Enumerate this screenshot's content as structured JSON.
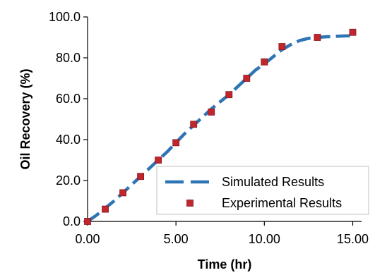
{
  "chart_data": {
    "type": "scatter",
    "title": "",
    "xlabel": "Time (hr)",
    "ylabel": "Oil Recovery  (%)",
    "xlim": [
      0,
      15.5
    ],
    "ylim": [
      0,
      100
    ],
    "x_ticks": [
      0,
      5,
      10,
      15
    ],
    "x_tick_labels": [
      "0.00",
      "5.00",
      "10.00",
      "15.00"
    ],
    "y_ticks": [
      0,
      20,
      40,
      60,
      80,
      100
    ],
    "y_tick_labels": [
      "0.0",
      "20.0",
      "40.0",
      "60.0",
      "80.0",
      "100.0"
    ],
    "grid": false,
    "legend_position": "bottom-right",
    "series": [
      {
        "name": "Simulated Results",
        "kind": "line",
        "style": "dashed",
        "color": "#2E75B6",
        "x": [
          0,
          0.5,
          1,
          1.5,
          2,
          2.5,
          3,
          3.5,
          4,
          4.5,
          5,
          5.5,
          6,
          6.5,
          7,
          7.5,
          8,
          8.5,
          9,
          9.5,
          10,
          10.5,
          11,
          11.5,
          12,
          12.5,
          13,
          13.5,
          14,
          14.5,
          15
        ],
        "y": [
          0,
          3,
          6.5,
          10,
          14,
          18,
          22,
          26,
          30,
          34,
          38.5,
          43,
          47,
          51,
          55,
          58.5,
          62,
          66,
          70,
          74,
          77,
          80.5,
          84,
          86.5,
          88.5,
          89.5,
          90,
          90.3,
          90.5,
          90.7,
          90.8
        ]
      },
      {
        "name": "Experimental Results",
        "kind": "marker",
        "marker": "square",
        "color": "#C0262D",
        "x": [
          0,
          1,
          2,
          3,
          4,
          5,
          6,
          7,
          8,
          9,
          10,
          11,
          13,
          15
        ],
        "y": [
          0,
          6,
          14,
          22,
          30,
          38.5,
          47.5,
          53.5,
          62,
          70,
          78,
          85.5,
          90,
          92.5
        ]
      }
    ]
  }
}
